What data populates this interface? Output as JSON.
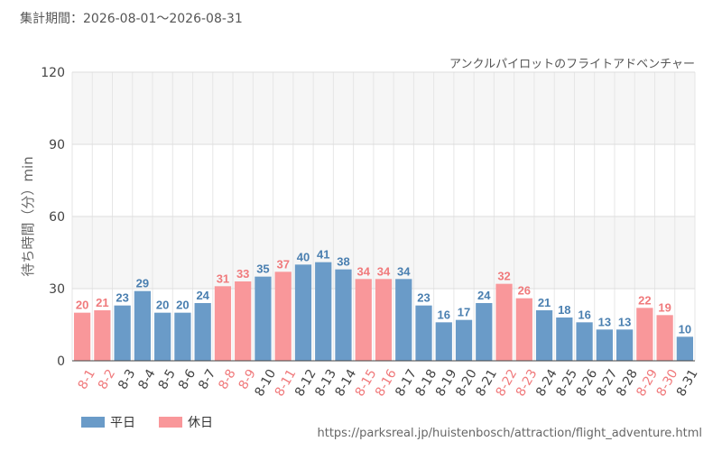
{
  "period_label": "集計期間：2026-08-01～2026-08-31",
  "source_url": "https://parksreal.jp/huistenbosch/attraction/flight_adventure.html",
  "legend": {
    "weekday": "平日",
    "holiday": "休日"
  },
  "colors": {
    "weekday": "#6a9bc8",
    "holiday": "#f9979a",
    "weekday_text": "#4a7fb0",
    "holiday_text": "#f07a7c"
  },
  "chart_data": {
    "type": "bar",
    "title": "アンクルパイロットのフライトアドベンチャー",
    "ylabel": "待ち時間（分）min",
    "xlabel": "",
    "ylim": [
      0,
      120
    ],
    "yticks": [
      0,
      30,
      60,
      90,
      120
    ],
    "categories": [
      "8-1",
      "8-2",
      "8-3",
      "8-4",
      "8-5",
      "8-6",
      "8-7",
      "8-8",
      "8-9",
      "8-10",
      "8-11",
      "8-12",
      "8-13",
      "8-14",
      "8-15",
      "8-16",
      "8-17",
      "8-18",
      "8-19",
      "8-20",
      "8-21",
      "8-22",
      "8-23",
      "8-24",
      "8-25",
      "8-26",
      "8-27",
      "8-28",
      "8-29",
      "8-30",
      "8-31"
    ],
    "values": [
      20,
      21,
      23,
      29,
      20,
      20,
      24,
      31,
      33,
      35,
      37,
      40,
      41,
      38,
      34,
      34,
      34,
      23,
      16,
      17,
      24,
      32,
      26,
      21,
      18,
      16,
      13,
      13,
      22,
      19,
      10
    ],
    "day_type": [
      "holiday",
      "holiday",
      "weekday",
      "weekday",
      "weekday",
      "weekday",
      "weekday",
      "holiday",
      "holiday",
      "weekday",
      "holiday",
      "weekday",
      "weekday",
      "weekday",
      "holiday",
      "holiday",
      "weekday",
      "weekday",
      "weekday",
      "weekday",
      "weekday",
      "holiday",
      "holiday",
      "weekday",
      "weekday",
      "weekday",
      "weekday",
      "weekday",
      "holiday",
      "holiday",
      "weekday"
    ],
    "grid": true,
    "legend_position": "bottom-left"
  }
}
